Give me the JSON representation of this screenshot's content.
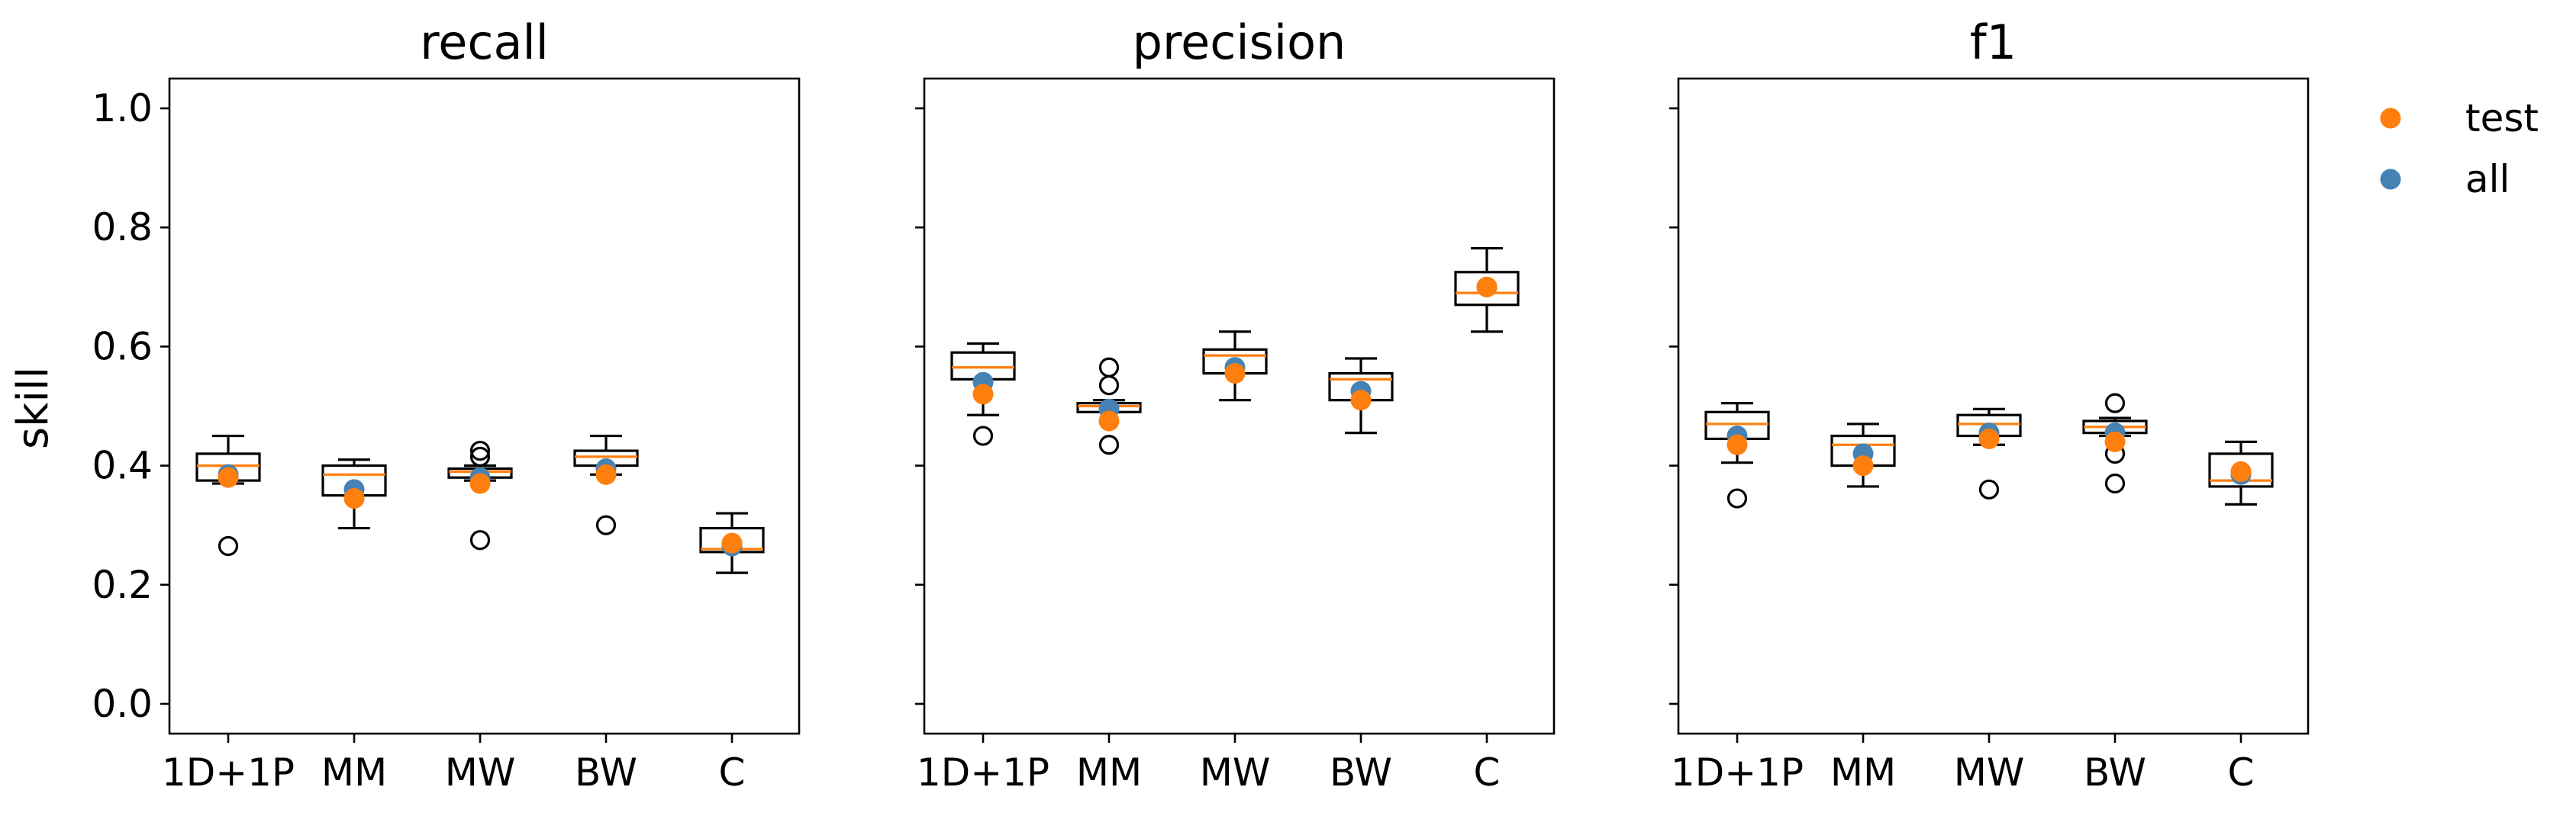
{
  "colors": {
    "test": "#ff7f0e",
    "all": "#4682b4",
    "median": "#ff7f0e",
    "box": "#000000"
  },
  "ylabel": "skill",
  "legend": {
    "placement": "outside-right",
    "entries": [
      {
        "label": "test",
        "color": "#ff7f0e"
      },
      {
        "label": "all",
        "color": "#4682b4"
      }
    ]
  },
  "chart_data": [
    {
      "type": "box",
      "title": "recall",
      "categories": [
        "1D+1P",
        "MM",
        "MW",
        "BW",
        "C"
      ],
      "ylim": [
        -0.05,
        1.05
      ],
      "yticks": [
        "0.0",
        "0.2",
        "0.4",
        "0.6",
        "0.8",
        "1.0"
      ],
      "boxes": [
        {
          "whislo": 0.37,
          "q1": 0.375,
          "med": 0.4,
          "q3": 0.42,
          "whishi": 0.45,
          "fliers": [
            0.265
          ]
        },
        {
          "whislo": 0.295,
          "q1": 0.35,
          "med": 0.385,
          "q3": 0.4,
          "whishi": 0.41,
          "fliers": []
        },
        {
          "whislo": 0.375,
          "q1": 0.38,
          "med": 0.39,
          "q3": 0.395,
          "whishi": 0.4,
          "fliers": [
            0.275,
            0.415,
            0.425
          ]
        },
        {
          "whislo": 0.385,
          "q1": 0.4,
          "med": 0.415,
          "q3": 0.425,
          "whishi": 0.45,
          "fliers": [
            0.3
          ]
        },
        {
          "whislo": 0.22,
          "q1": 0.255,
          "med": 0.26,
          "q3": 0.295,
          "whishi": 0.32,
          "fliers": []
        }
      ],
      "series": [
        {
          "name": "all",
          "values": [
            0.385,
            0.36,
            0.38,
            0.395,
            0.265
          ]
        },
        {
          "name": "test",
          "values": [
            0.38,
            0.345,
            0.37,
            0.385,
            0.27
          ]
        }
      ]
    },
    {
      "type": "box",
      "title": "precision",
      "categories": [
        "1D+1P",
        "MM",
        "MW",
        "BW",
        "C"
      ],
      "ylim": [
        -0.05,
        1.05
      ],
      "yticks": [
        "0.0",
        "0.2",
        "0.4",
        "0.6",
        "0.8",
        "1.0"
      ],
      "boxes": [
        {
          "whislo": 0.485,
          "q1": 0.545,
          "med": 0.565,
          "q3": 0.59,
          "whishi": 0.605,
          "fliers": [
            0.45
          ]
        },
        {
          "whislo": 0.49,
          "q1": 0.49,
          "med": 0.5,
          "q3": 0.505,
          "whishi": 0.51,
          "fliers": [
            0.435,
            0.535,
            0.565
          ]
        },
        {
          "whislo": 0.51,
          "q1": 0.555,
          "med": 0.585,
          "q3": 0.595,
          "whishi": 0.625,
          "fliers": []
        },
        {
          "whislo": 0.455,
          "q1": 0.51,
          "med": 0.545,
          "q3": 0.555,
          "whishi": 0.58,
          "fliers": []
        },
        {
          "whislo": 0.625,
          "q1": 0.67,
          "med": 0.69,
          "q3": 0.725,
          "whishi": 0.765,
          "fliers": []
        }
      ],
      "series": [
        {
          "name": "all",
          "values": [
            0.54,
            0.495,
            0.565,
            0.525,
            0.7
          ]
        },
        {
          "name": "test",
          "values": [
            0.52,
            0.475,
            0.555,
            0.51,
            0.7
          ]
        }
      ]
    },
    {
      "type": "box",
      "title": "f1",
      "categories": [
        "1D+1P",
        "MM",
        "MW",
        "BW",
        "C"
      ],
      "ylim": [
        -0.05,
        1.05
      ],
      "yticks": [
        "0.0",
        "0.2",
        "0.4",
        "0.6",
        "0.8",
        "1.0"
      ],
      "boxes": [
        {
          "whislo": 0.405,
          "q1": 0.445,
          "med": 0.47,
          "q3": 0.49,
          "whishi": 0.505,
          "fliers": [
            0.345
          ]
        },
        {
          "whislo": 0.365,
          "q1": 0.4,
          "med": 0.435,
          "q3": 0.45,
          "whishi": 0.47,
          "fliers": []
        },
        {
          "whislo": 0.435,
          "q1": 0.45,
          "med": 0.47,
          "q3": 0.485,
          "whishi": 0.495,
          "fliers": [
            0.36
          ]
        },
        {
          "whislo": 0.45,
          "q1": 0.455,
          "med": 0.465,
          "q3": 0.475,
          "whishi": 0.48,
          "fliers": [
            0.37,
            0.42,
            0.505
          ]
        },
        {
          "whislo": 0.335,
          "q1": 0.365,
          "med": 0.375,
          "q3": 0.42,
          "whishi": 0.44,
          "fliers": []
        }
      ],
      "series": [
        {
          "name": "all",
          "values": [
            0.45,
            0.42,
            0.455,
            0.455,
            0.385
          ]
        },
        {
          "name": "test",
          "values": [
            0.435,
            0.4,
            0.445,
            0.44,
            0.39
          ]
        }
      ]
    }
  ]
}
